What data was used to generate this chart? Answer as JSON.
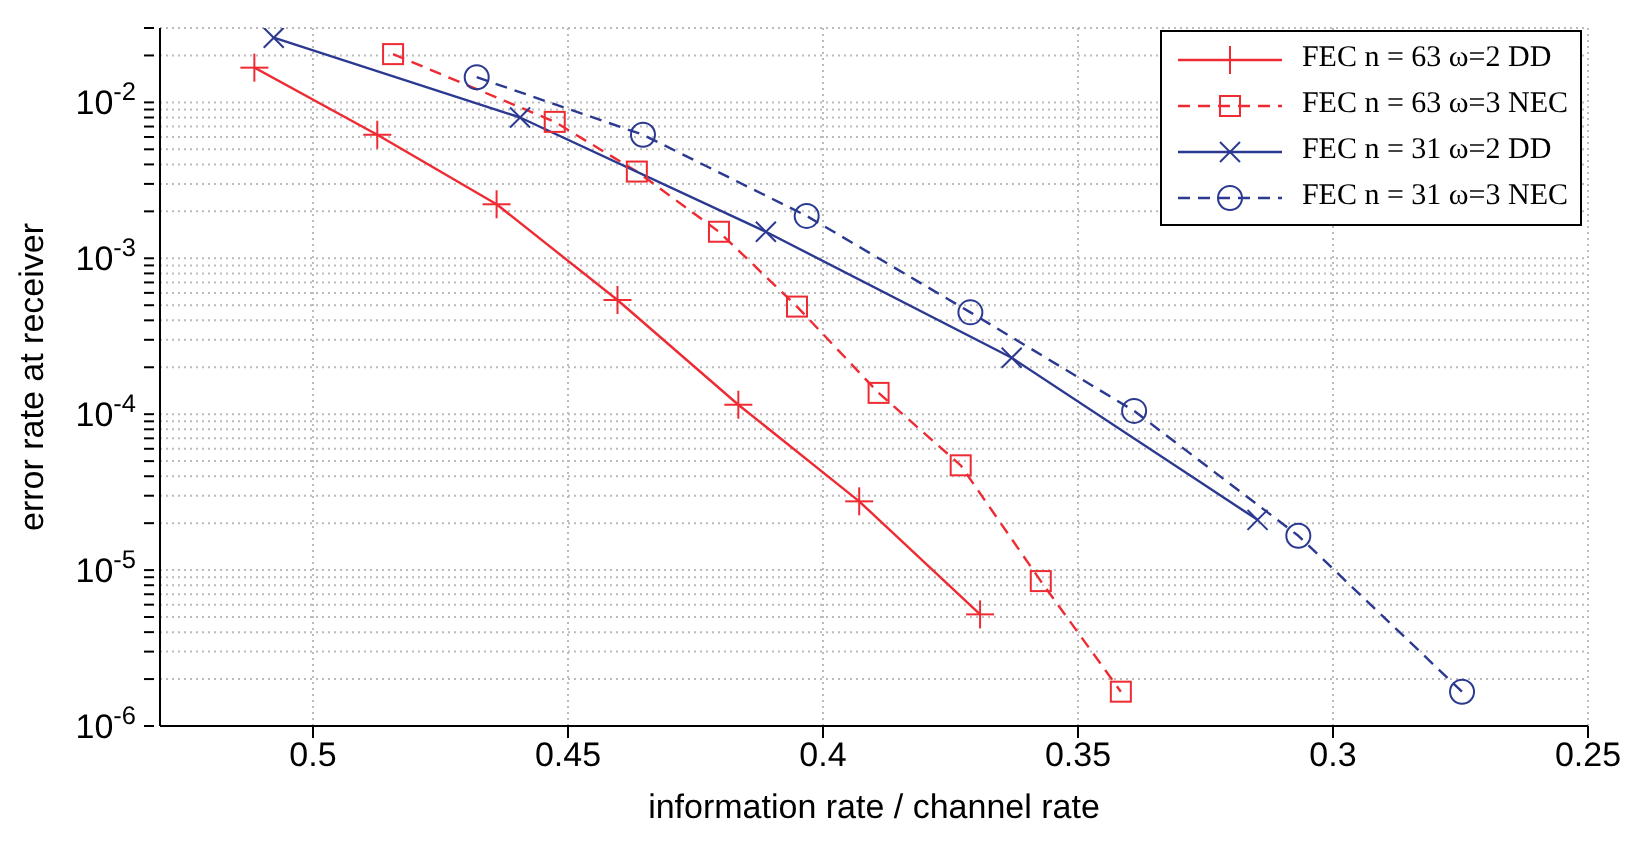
{
  "chart_data": {
    "type": "line",
    "xlabel": "information rate / channel rate",
    "ylabel": "error rate at receiver",
    "log": "y",
    "grid": true,
    "legend": "top right",
    "xlim": [
      0.53,
      0.25
    ],
    "xticks": [
      0.5,
      0.45,
      0.4,
      0.35,
      0.3,
      0.25
    ],
    "ylim": [
      1e-06,
      0.03
    ],
    "yticks": [
      {
        "value": 1e-06,
        "label": "10$^{-6}$"
      },
      {
        "value": 2e-06,
        "label": null
      },
      {
        "value": 3e-06,
        "label": null
      },
      {
        "value": 4e-06,
        "label": null
      },
      {
        "value": 5e-06,
        "label": null
      },
      {
        "value": 6e-06,
        "label": null
      },
      {
        "value": 7e-06,
        "label": null
      },
      {
        "value": 8e-06,
        "label": null
      },
      {
        "value": 9e-06,
        "label": null
      },
      {
        "value": 1e-05,
        "label": "10$^{-5}$"
      },
      {
        "value": 2e-05,
        "label": null
      },
      {
        "value": 3e-05,
        "label": null
      },
      {
        "value": 4e-05,
        "label": null
      },
      {
        "value": 5e-05,
        "label": null
      },
      {
        "value": 6e-05,
        "label": null
      },
      {
        "value": 7e-05,
        "label": null
      },
      {
        "value": 8e-05,
        "label": null
      },
      {
        "value": 9e-05,
        "label": null
      },
      {
        "value": 0.0001,
        "label": "10$^{-4}$"
      },
      {
        "value": 0.0002,
        "label": null
      },
      {
        "value": 0.0003,
        "label": null
      },
      {
        "value": 0.0004,
        "label": null
      },
      {
        "value": 0.0005,
        "label": null
      },
      {
        "value": 0.0006,
        "label": null
      },
      {
        "value": 0.0007,
        "label": null
      },
      {
        "value": 0.0008,
        "label": null
      },
      {
        "value": 0.0009,
        "label": null
      },
      {
        "value": 0.001,
        "label": "10$^{-3}$"
      },
      {
        "value": 0.002,
        "label": null
      },
      {
        "value": 0.003,
        "label": null
      },
      {
        "value": 0.004,
        "label": null
      },
      {
        "value": 0.005,
        "label": null
      },
      {
        "value": 0.006,
        "label": null
      },
      {
        "value": 0.007,
        "label": null
      },
      {
        "value": 0.008,
        "label": null
      },
      {
        "value": 0.009,
        "label": null
      },
      {
        "value": 0.01,
        "label": "10$^{-2}$"
      },
      {
        "value": 0.02,
        "label": null
      },
      {
        "value": 0.03,
        "label": null
      }
    ],
    "series": [
      {
        "name": "FEC n = 63 ω=2 DD",
        "color": "#ee2a33",
        "marker": "plus",
        "line_style": "solid",
        "x": [
          0.5115,
          0.4874,
          0.464,
          0.4403,
          0.4166,
          0.3929,
          0.3692
        ],
        "values": [
          0.0167,
          0.0062,
          0.00222,
          0.00054,
          0.000115,
          2.76e-05,
          5.2e-06
        ]
      },
      {
        "name": "FEC n = 63 ω=3 NEC",
        "color": "#ee2a33",
        "marker": "square",
        "line_style": "dashed",
        "x": [
          0.4843,
          0.4526,
          0.4365,
          0.4204,
          0.4051,
          0.3891,
          0.373,
          0.3573,
          0.3416
        ],
        "values": [
          0.0204,
          0.0075,
          0.0036,
          0.00148,
          0.00049,
          0.000137,
          4.7e-05,
          8.5e-06,
          1.66e-06
        ]
      },
      {
        "name": "FEC n = 31 ω=2 DD",
        "color": "#2b3990",
        "marker": "cross",
        "line_style": "solid",
        "x": [
          0.5077,
          0.4594,
          0.4112,
          0.363,
          0.3148
        ],
        "values": [
          0.026,
          0.008,
          0.00148,
          0.00023,
          2.1e-05
        ]
      },
      {
        "name": "FEC n = 31 ω=3 NEC",
        "color": "#2b3990",
        "marker": "circle",
        "line_style": "dashed",
        "x": [
          0.4679,
          0.4353,
          0.4032,
          0.3711,
          0.339,
          0.3068,
          0.2747
        ],
        "values": [
          0.0145,
          0.0062,
          0.00187,
          0.00045,
          0.000105,
          1.66e-05,
          1.66e-06
        ]
      }
    ]
  }
}
